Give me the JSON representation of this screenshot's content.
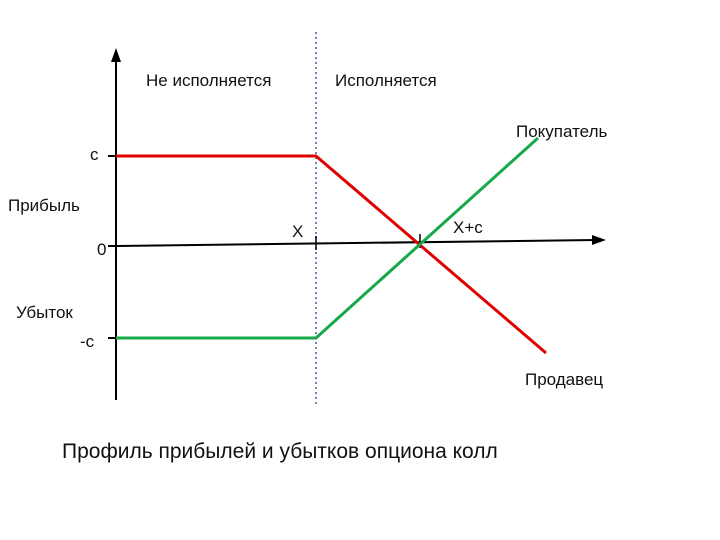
{
  "labels": {
    "not_exercised": "Не исполняется",
    "exercised": "Исполняется",
    "buyer": "Покупатель",
    "seller": "Продавец",
    "profit": "Прибыль",
    "loss": "Убыток",
    "c": "c",
    "minus_c": "-c",
    "zero": "0",
    "strike": "X",
    "breakeven": "X+c"
  },
  "caption": "Профиль прибылей и убытков опциона колл",
  "colors": {
    "seller_line": "#e00000",
    "buyer_line": "#17a84a",
    "axes": "#000000",
    "divider": "#3a5aa8"
  }
}
